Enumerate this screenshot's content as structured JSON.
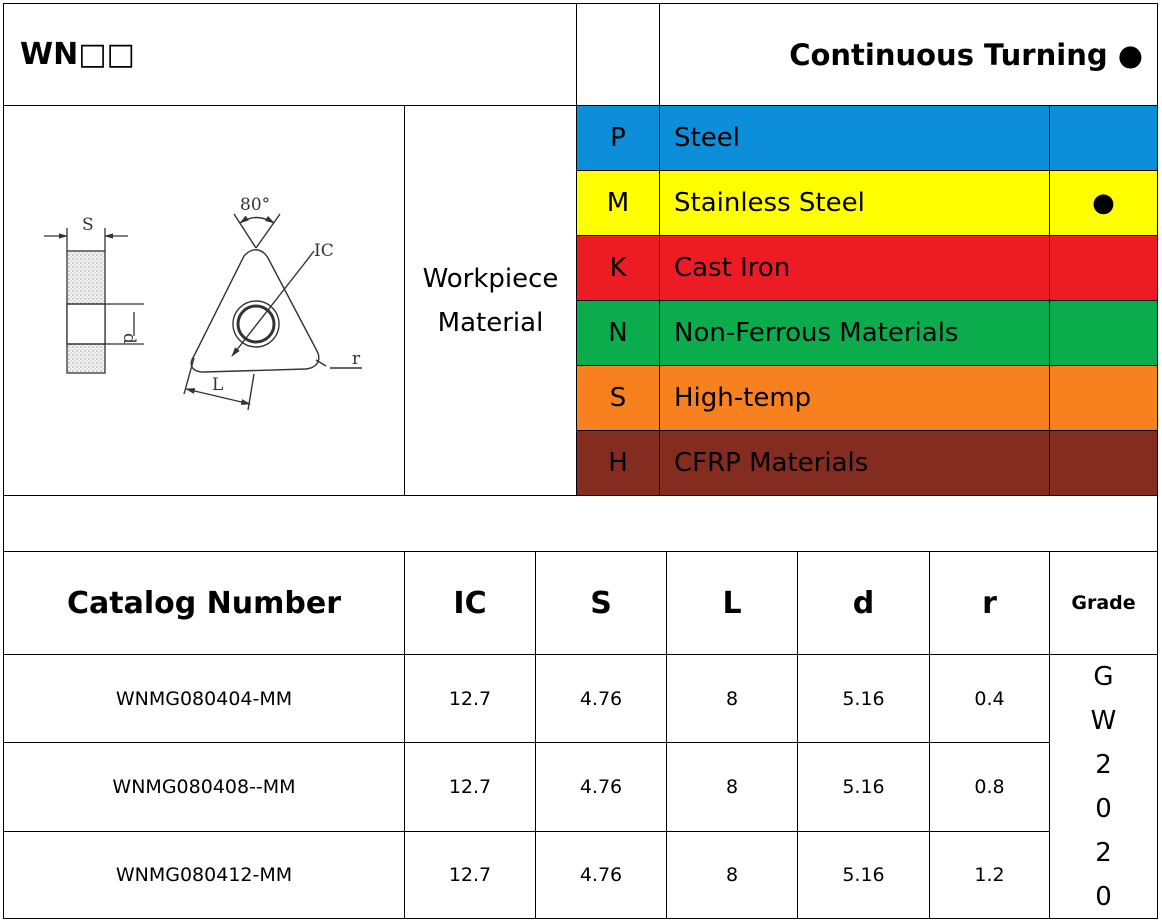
{
  "header": {
    "title": "WN□□",
    "mode": "Continuous Turning ●"
  },
  "workpiece_label": "Workpiece\nMaterial",
  "drawing_labels": {
    "s": "S",
    "d": "d",
    "angle": "80°",
    "ic": "IC",
    "l": "L",
    "r": "r"
  },
  "materials": [
    {
      "code": "P",
      "name": "Steel",
      "mark": "",
      "color": "#0d8ed9"
    },
    {
      "code": "M",
      "name": "Stainless Steel",
      "mark": "●",
      "color": "#ffff00"
    },
    {
      "code": "K",
      "name": "Cast Iron",
      "mark": "",
      "color": "#ed1c24"
    },
    {
      "code": "N",
      "name": "Non-Ferrous Materials",
      "mark": "",
      "color": "#0aac4b"
    },
    {
      "code": "S",
      "name": "High-temp",
      "mark": "",
      "color": "#f7801f"
    },
    {
      "code": "H",
      "name": "CFRP Materials",
      "mark": "",
      "color": "#832c1f"
    }
  ],
  "table": {
    "headers": [
      "Catalog Number",
      "IC",
      "S",
      "L",
      "d",
      "r",
      "Grade"
    ],
    "rows": [
      [
        "WNMG080404-MM",
        "12.7",
        "4.76",
        "8",
        "5.16",
        "0.4"
      ],
      [
        "WNMG080408--MM",
        "12.7",
        "4.76",
        "8",
        "5.16",
        "0.8"
      ],
      [
        "WNMG080412-MM",
        "12.7",
        "4.76",
        "8",
        "5.16",
        "1.2"
      ]
    ],
    "grade_chars": [
      "G",
      "W",
      "2",
      "0",
      "2",
      "0"
    ]
  }
}
